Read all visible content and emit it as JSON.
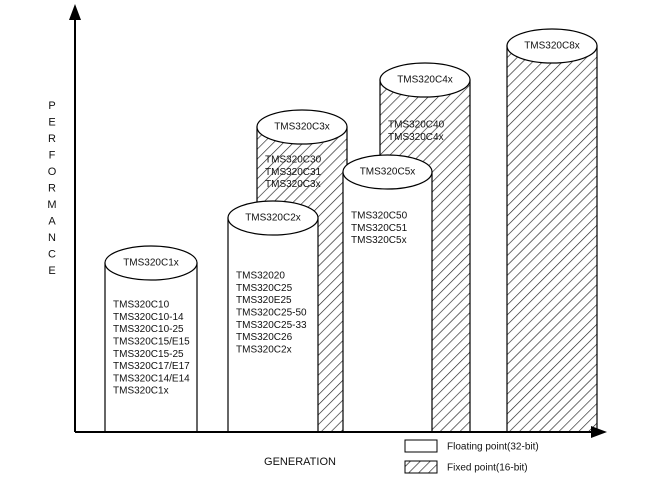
{
  "axes": {
    "y_label": "PERFORMANCE",
    "x_label": "GENERATION"
  },
  "cylinders": [
    {
      "title": "TMS320C3x",
      "items": [
        "TMS320C30",
        "TMS320C31",
        "TMS320C3x"
      ]
    },
    {
      "title": "TMS320C4x",
      "items": [
        "TMS320C40",
        "TMS320C4x"
      ]
    },
    {
      "title": "TMS320C8x",
      "items": []
    },
    {
      "title": "TMS320C1x",
      "items": [
        "TMS320C10",
        "TMS320C10-14",
        "TMS320C10-25",
        "TMS320C15/E15",
        "TMS320C15-25",
        "TMS320C17/E17",
        "TMS320C14/E14",
        "TMS320C1x"
      ]
    },
    {
      "title": "TMS320C2x",
      "items": [
        "TMS32020",
        "TMS320C25",
        "TMS320E25",
        "TMS320C25-50",
        "TMS320C25-33",
        "TMS320C26",
        "TMS320C2x"
      ]
    },
    {
      "title": "TMS320C5x",
      "items": [
        "TMS320C50",
        "TMS320C51",
        "TMS320C5x"
      ]
    }
  ],
  "legend": [
    {
      "label": "Floating point(32-bit)"
    },
    {
      "label": "Fixed point(16-bit)"
    }
  ]
}
